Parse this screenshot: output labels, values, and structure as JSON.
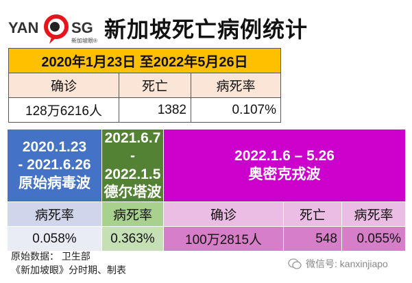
{
  "logo": {
    "text_left": "YAN",
    "text_right": "SG",
    "sub": "新加坡眼®",
    "accent": "#e8141c"
  },
  "title": "新加坡死亡病例统计",
  "summary": {
    "period": "2020年1月23日 至2022年5月26日",
    "headers": [
      "确诊",
      "死亡",
      "病死率"
    ],
    "values": [
      "128万6216人",
      "1382",
      "0.107%"
    ]
  },
  "waves": {
    "original": {
      "dates": [
        "2020.1.23",
        "- 2021.6.26"
      ],
      "name": "原始病毒波",
      "header": "病死率",
      "rate": "0.058%",
      "color": "#4472c4"
    },
    "delta": {
      "dates": [
        "2021.6.7",
        "- 2022.1.5"
      ],
      "name": "德尔塔波",
      "header": "病死率",
      "rate": "0.363%",
      "color": "#548235"
    },
    "omicron": {
      "dates": "2022.1.6 – 5.26",
      "name": "奥密克戎波",
      "headers": [
        "确诊",
        "死亡",
        "病死率"
      ],
      "values": [
        "100万2815人",
        "548",
        "0.055%"
      ],
      "color": "#cc00cc"
    }
  },
  "footer": {
    "source": "原始数据：  卫生部",
    "credit": "《新加坡眼》分时期、制表",
    "wechat": "微信号: kanxinjiapo"
  }
}
